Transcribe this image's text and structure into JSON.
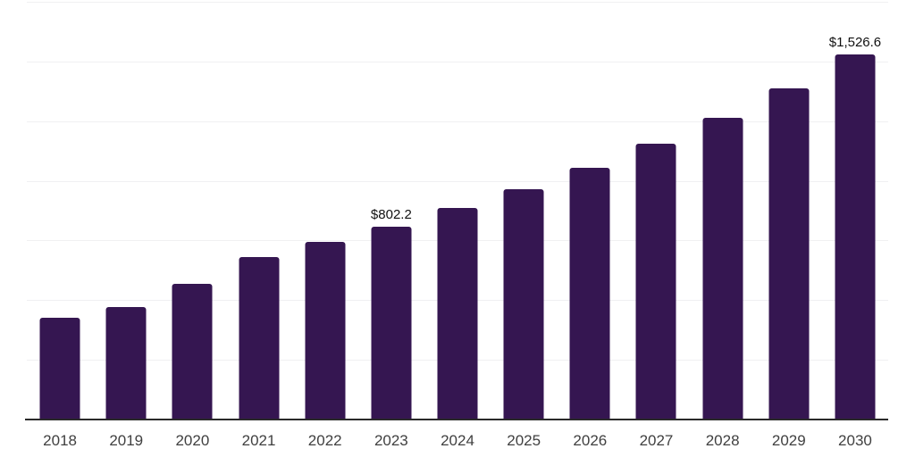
{
  "chart_data": {
    "type": "bar",
    "title": "",
    "xlabel": "",
    "ylabel": "",
    "categories": [
      "2018",
      "2019",
      "2020",
      "2021",
      "2022",
      "2023",
      "2024",
      "2025",
      "2026",
      "2027",
      "2028",
      "2029",
      "2030"
    ],
    "values": [
      421,
      467,
      563,
      676,
      739,
      802.2,
      881,
      960,
      1049,
      1151,
      1262,
      1385,
      1526.6
    ],
    "data_labels": [
      "",
      "",
      "",
      "",
      "",
      "$802.2",
      "",
      "",
      "",
      "",
      "",
      "",
      "$1,526.6"
    ],
    "ylim": [
      0,
      1750
    ],
    "gridline_step": 250,
    "grid": true,
    "legend": false,
    "colors": {
      "bar": "#351651",
      "gridline": "#f0f0f2",
      "axis": "#2a2a2a",
      "tick_label": "#404040",
      "data_label": "#111111",
      "background": "#ffffff"
    }
  }
}
